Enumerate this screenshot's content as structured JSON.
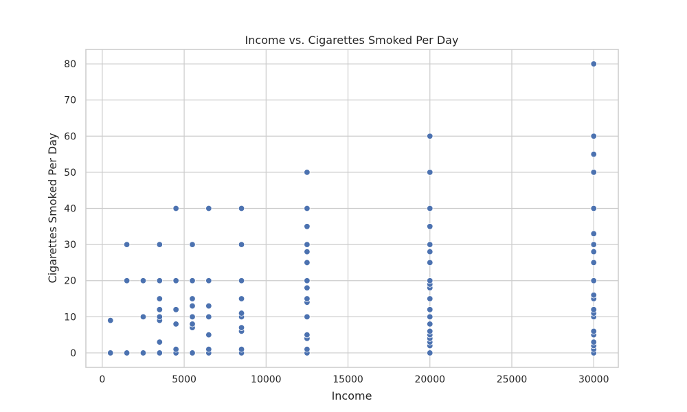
{
  "chart_data": {
    "type": "scatter",
    "title": "Income vs. Cigarettes Smoked Per Day",
    "xlabel": "Income",
    "ylabel": "Cigarettes Smoked Per Day",
    "xlim": [
      -1000,
      31500
    ],
    "ylim": [
      -4,
      84
    ],
    "xticks": [
      0,
      5000,
      10000,
      15000,
      20000,
      25000,
      30000
    ],
    "yticks": [
      0,
      10,
      20,
      30,
      40,
      50,
      60,
      70,
      80
    ],
    "grid": true,
    "color": "#4c72b0",
    "points": [
      [
        500,
        0
      ],
      [
        500,
        9
      ],
      [
        1500,
        0
      ],
      [
        1500,
        20
      ],
      [
        1500,
        30
      ],
      [
        2500,
        0
      ],
      [
        2500,
        10
      ],
      [
        2500,
        20
      ],
      [
        3500,
        0
      ],
      [
        3500,
        3
      ],
      [
        3500,
        9
      ],
      [
        3500,
        10
      ],
      [
        3500,
        12
      ],
      [
        3500,
        15
      ],
      [
        3500,
        20
      ],
      [
        3500,
        30
      ],
      [
        4500,
        0
      ],
      [
        4500,
        1
      ],
      [
        4500,
        8
      ],
      [
        4500,
        12
      ],
      [
        4500,
        20
      ],
      [
        4500,
        40
      ],
      [
        5500,
        0
      ],
      [
        5500,
        7
      ],
      [
        5500,
        8
      ],
      [
        5500,
        10
      ],
      [
        5500,
        13
      ],
      [
        5500,
        15
      ],
      [
        5500,
        20
      ],
      [
        5500,
        30
      ],
      [
        6500,
        0
      ],
      [
        6500,
        1
      ],
      [
        6500,
        5
      ],
      [
        6500,
        10
      ],
      [
        6500,
        13
      ],
      [
        6500,
        20
      ],
      [
        6500,
        40
      ],
      [
        8500,
        0
      ],
      [
        8500,
        1
      ],
      [
        8500,
        6
      ],
      [
        8500,
        7
      ],
      [
        8500,
        10
      ],
      [
        8500,
        11
      ],
      [
        8500,
        15
      ],
      [
        8500,
        20
      ],
      [
        8500,
        30
      ],
      [
        8500,
        40
      ],
      [
        12500,
        0
      ],
      [
        12500,
        1
      ],
      [
        12500,
        4
      ],
      [
        12500,
        5
      ],
      [
        12500,
        10
      ],
      [
        12500,
        14
      ],
      [
        12500,
        15
      ],
      [
        12500,
        18
      ],
      [
        12500,
        20
      ],
      [
        12500,
        25
      ],
      [
        12500,
        28
      ],
      [
        12500,
        30
      ],
      [
        12500,
        35
      ],
      [
        12500,
        40
      ],
      [
        12500,
        50
      ],
      [
        20000,
        0
      ],
      [
        20000,
        2
      ],
      [
        20000,
        3
      ],
      [
        20000,
        4
      ],
      [
        20000,
        5
      ],
      [
        20000,
        6
      ],
      [
        20000,
        8
      ],
      [
        20000,
        10
      ],
      [
        20000,
        12
      ],
      [
        20000,
        15
      ],
      [
        20000,
        18
      ],
      [
        20000,
        19
      ],
      [
        20000,
        20
      ],
      [
        20000,
        25
      ],
      [
        20000,
        28
      ],
      [
        20000,
        30
      ],
      [
        20000,
        35
      ],
      [
        20000,
        40
      ],
      [
        20000,
        50
      ],
      [
        20000,
        60
      ],
      [
        30000,
        0
      ],
      [
        30000,
        1
      ],
      [
        30000,
        2
      ],
      [
        30000,
        3
      ],
      [
        30000,
        5
      ],
      [
        30000,
        6
      ],
      [
        30000,
        10
      ],
      [
        30000,
        11
      ],
      [
        30000,
        12
      ],
      [
        30000,
        15
      ],
      [
        30000,
        16
      ],
      [
        30000,
        20
      ],
      [
        30000,
        25
      ],
      [
        30000,
        28
      ],
      [
        30000,
        30
      ],
      [
        30000,
        33
      ],
      [
        30000,
        40
      ],
      [
        30000,
        50
      ],
      [
        30000,
        55
      ],
      [
        30000,
        60
      ],
      [
        30000,
        80
      ]
    ]
  }
}
